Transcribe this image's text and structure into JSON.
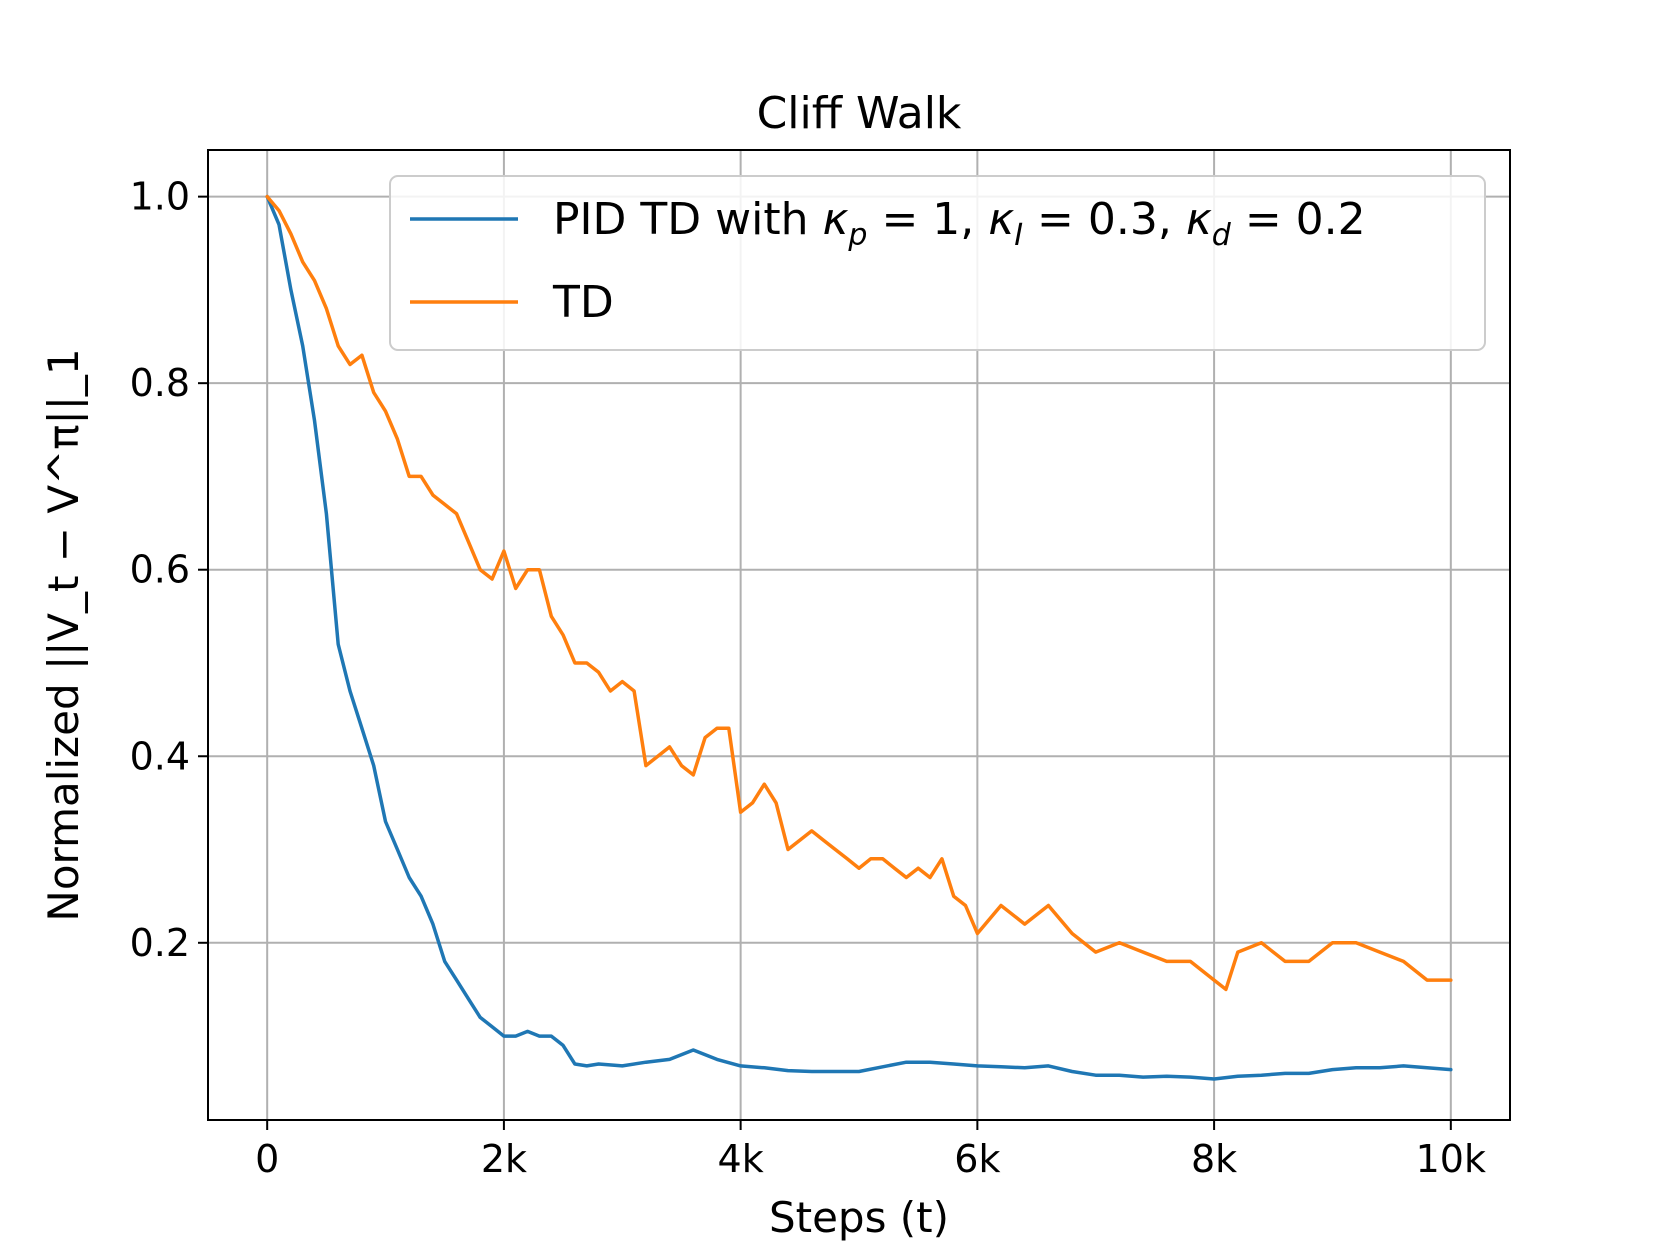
{
  "chart_data": {
    "type": "line",
    "title": "Cliff Walk",
    "xlabel": "Steps (t)",
    "ylabel": "Normalized ||V_t − V^π||_1",
    "xlim": [
      -500,
      10500
    ],
    "ylim": [
      0.01,
      1.05
    ],
    "grid": true,
    "legend_position": "top-right",
    "x_ticks": [
      {
        "value": 0,
        "label": "0"
      },
      {
        "value": 2000,
        "label": "2k"
      },
      {
        "value": 4000,
        "label": "4k"
      },
      {
        "value": 6000,
        "label": "6k"
      },
      {
        "value": 8000,
        "label": "8k"
      },
      {
        "value": 10000,
        "label": "10k"
      }
    ],
    "y_ticks": [
      {
        "value": 0.2,
        "label": "0.2"
      },
      {
        "value": 0.4,
        "label": "0.4"
      },
      {
        "value": 0.6,
        "label": "0.6"
      },
      {
        "value": 0.8,
        "label": "0.8"
      },
      {
        "value": 1.0,
        "label": "1.0"
      }
    ],
    "series": [
      {
        "name": "PID TD with κp = 1, κI = 0.3, κd = 0.2",
        "legend": {
          "prefix": "PID TD with ",
          "k1": "κ",
          "s1": "p",
          "v1": " = 1, ",
          "k2": "κ",
          "s2": "I",
          "v2": " = 0.3, ",
          "k3": "κ",
          "s3": "d",
          "v3": " = 0.2"
        },
        "color": "#1f77b4",
        "x": [
          0,
          100,
          200,
          300,
          400,
          500,
          600,
          700,
          800,
          900,
          1000,
          1100,
          1200,
          1300,
          1400,
          1500,
          1600,
          1700,
          1800,
          1900,
          2000,
          2100,
          2200,
          2300,
          2400,
          2500,
          2600,
          2700,
          2800,
          3000,
          3200,
          3400,
          3600,
          3800,
          4000,
          4200,
          4400,
          4600,
          4800,
          5000,
          5200,
          5400,
          5600,
          5800,
          6000,
          6200,
          6400,
          6600,
          6800,
          7000,
          7200,
          7400,
          7600,
          7800,
          8000,
          8200,
          8400,
          8600,
          8800,
          9000,
          9200,
          9400,
          9600,
          9800,
          10000
        ],
        "values": [
          1.0,
          0.97,
          0.9,
          0.84,
          0.76,
          0.66,
          0.52,
          0.47,
          0.43,
          0.39,
          0.33,
          0.3,
          0.27,
          0.25,
          0.22,
          0.18,
          0.16,
          0.14,
          0.12,
          0.11,
          0.1,
          0.1,
          0.105,
          0.1,
          0.1,
          0.09,
          0.07,
          0.068,
          0.07,
          0.068,
          0.072,
          0.075,
          0.085,
          0.075,
          0.068,
          0.066,
          0.063,
          0.062,
          0.062,
          0.062,
          0.067,
          0.072,
          0.072,
          0.07,
          0.068,
          0.067,
          0.066,
          0.068,
          0.062,
          0.058,
          0.058,
          0.056,
          0.057,
          0.056,
          0.054,
          0.057,
          0.058,
          0.06,
          0.06,
          0.064,
          0.066,
          0.066,
          0.068,
          0.066,
          0.064
        ]
      },
      {
        "name": "TD",
        "color": "#ff7f0e",
        "x": [
          0,
          100,
          200,
          300,
          400,
          500,
          600,
          700,
          800,
          900,
          1000,
          1100,
          1200,
          1300,
          1400,
          1500,
          1600,
          1700,
          1800,
          1900,
          2000,
          2100,
          2200,
          2300,
          2400,
          2500,
          2600,
          2700,
          2800,
          2900,
          3000,
          3100,
          3200,
          3300,
          3400,
          3500,
          3600,
          3700,
          3800,
          3900,
          4000,
          4100,
          4200,
          4300,
          4400,
          4500,
          4600,
          4700,
          4800,
          4900,
          5000,
          5100,
          5200,
          5300,
          5400,
          5500,
          5600,
          5700,
          5800,
          5900,
          6000,
          6200,
          6400,
          6600,
          6800,
          7000,
          7200,
          7400,
          7600,
          7800,
          8000,
          8100,
          8200,
          8400,
          8600,
          8800,
          9000,
          9200,
          9400,
          9600,
          9800,
          10000
        ],
        "values": [
          1.0,
          0.985,
          0.96,
          0.93,
          0.91,
          0.88,
          0.84,
          0.82,
          0.83,
          0.79,
          0.77,
          0.74,
          0.7,
          0.7,
          0.68,
          0.67,
          0.66,
          0.63,
          0.6,
          0.59,
          0.62,
          0.58,
          0.6,
          0.6,
          0.55,
          0.53,
          0.5,
          0.5,
          0.49,
          0.47,
          0.48,
          0.47,
          0.39,
          0.4,
          0.41,
          0.39,
          0.38,
          0.42,
          0.43,
          0.43,
          0.34,
          0.35,
          0.37,
          0.35,
          0.3,
          0.31,
          0.32,
          0.31,
          0.3,
          0.29,
          0.28,
          0.29,
          0.29,
          0.28,
          0.27,
          0.28,
          0.27,
          0.29,
          0.25,
          0.24,
          0.21,
          0.24,
          0.22,
          0.24,
          0.21,
          0.19,
          0.2,
          0.19,
          0.18,
          0.18,
          0.16,
          0.15,
          0.19,
          0.2,
          0.18,
          0.18,
          0.2,
          0.2,
          0.19,
          0.18,
          0.16,
          0.16
        ]
      }
    ]
  }
}
